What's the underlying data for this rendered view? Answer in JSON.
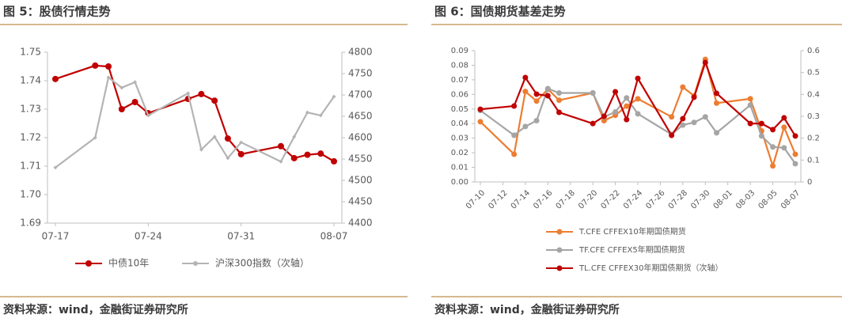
{
  "chart_data": [
    {
      "type": "line",
      "title": "图 5：股债行情走势",
      "source": "资料来源：wind，金融街证券研究所",
      "x": [
        "07-17",
        "07-20",
        "07-21",
        "07-22",
        "07-23",
        "07-24",
        "07-27",
        "07-28",
        "07-29",
        "07-30",
        "07-31",
        "08-03",
        "08-04",
        "08-05",
        "08-06",
        "08-07"
      ],
      "xticks": [
        "07-17",
        "07-24",
        "07-31",
        "08-07"
      ],
      "ylim": [
        1.69,
        1.75
      ],
      "yticks": [
        1.69,
        {
          "value": 1.7,
          "label": "1.70"
        },
        1.71,
        1.72,
        1.73,
        1.74,
        1.75
      ],
      "y2lim": [
        4400,
        4800
      ],
      "y2ticks": [
        4400,
        4450,
        4500,
        4550,
        4600,
        4650,
        4700,
        4750,
        4800
      ],
      "legend": "bottom",
      "series": [
        {
          "name": "中债10年",
          "color": "#c00000",
          "values": [
            1.7406,
            1.7453,
            1.745,
            1.73,
            1.7325,
            1.7286,
            1.7336,
            1.7353,
            1.733,
            1.7197,
            1.7142,
            1.717,
            1.7128,
            1.714,
            1.7144,
            1.7117
          ]
        },
        {
          "name": "沪深300指数（次轴）",
          "color": "#b4b4b4",
          "axis": "y2",
          "values": [
            4530,
            4600,
            4741,
            4717,
            4730,
            4652,
            4704,
            4572,
            4602,
            4552,
            4589,
            4544,
            4602,
            4659,
            4652,
            4696
          ]
        }
      ]
    },
    {
      "type": "line",
      "title": "图 6：国债期货基差走势",
      "source": "资料来源：wind，金融街证券研究所",
      "x": [
        "07-10",
        "07-13",
        "07-14",
        "07-15",
        "07-16",
        "07-17",
        "07-20",
        "07-21",
        "07-22",
        "07-23",
        "07-24",
        "07-27",
        "07-28",
        "07-29",
        "07-30",
        "07-31",
        "08-03",
        "08-04",
        "08-05",
        "08-06",
        "08-07"
      ],
      "xticks": [
        "07-10",
        "07-12",
        "07-14",
        "07-16",
        "07-18",
        "07-20",
        "07-22",
        "07-24",
        "07-26",
        "07-28",
        "07-30",
        "08-01",
        "08-03",
        "08-05",
        "08-07"
      ],
      "ylim": [
        0,
        0.09
      ],
      "yticks": [
        {
          "value": 0,
          "label": "0.00"
        },
        {
          "value": 0.01,
          "label": "0.01"
        },
        {
          "value": 0.02,
          "label": "0.02"
        },
        {
          "value": 0.03,
          "label": "0.03"
        },
        {
          "value": 0.04,
          "label": "0.04"
        },
        {
          "value": 0.05,
          "label": "0.05"
        },
        {
          "value": 0.06,
          "label": "0.06"
        },
        {
          "value": 0.07,
          "label": "0.07"
        },
        {
          "value": 0.08,
          "label": "0.08"
        },
        {
          "value": 0.09,
          "label": "0.09"
        }
      ],
      "y2lim": [
        0,
        0.6
      ],
      "y2ticks": [
        0,
        0.1,
        0.2,
        0.3,
        0.4,
        0.5,
        0.6
      ],
      "legend": "bottom-left",
      "series": [
        {
          "name": "T.CFE CFFEX10年期国债期货",
          "color": "#ed7d31",
          "values": [
            0.0413,
            0.019,
            0.062,
            0.0554,
            0.0636,
            0.056,
            0.061,
            0.042,
            0.0457,
            0.052,
            0.057,
            0.0446,
            0.065,
            0.059,
            0.084,
            0.054,
            0.057,
            0.035,
            0.011,
            0.0375,
            0.019
          ]
        },
        {
          "name": "TF.CFE CFFEX5年期国债期货",
          "color": "#a5a5a5",
          "values": [
            0.049,
            0.032,
            0.038,
            0.042,
            0.064,
            0.061,
            0.061,
            0.0446,
            0.048,
            0.0576,
            0.0467,
            0.0326,
            0.039,
            0.0408,
            0.0446,
            0.0337,
            0.0527,
            0.0315,
            0.024,
            0.0234,
            0.0125
          ]
        },
        {
          "name": "TL.CFE CFFEX30年期国债期货（次轴）",
          "color": "#c00000",
          "axis": "y2",
          "values": [
            0.332,
            0.347,
            0.477,
            0.401,
            0.394,
            0.318,
            0.267,
            0.3,
            0.412,
            0.285,
            0.473,
            0.213,
            0.289,
            0.387,
            0.546,
            0.405,
            0.267,
            0.267,
            0.239,
            0.293,
            0.21
          ]
        }
      ]
    }
  ]
}
